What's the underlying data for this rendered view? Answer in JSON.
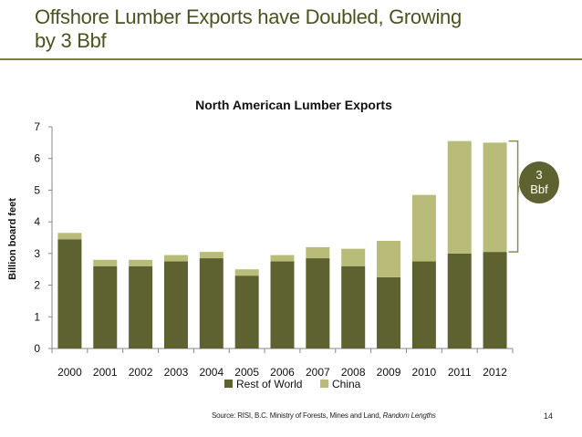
{
  "slide": {
    "title_line1": "Offshore Lumber Exports have Doubled, Growing",
    "title_line2": "by 3 Bbf",
    "source_prefix": "Source:  RISI, B.C. Ministry of Forests, Mines and Land,",
    "source_italic": "Random Lengths",
    "page_number": "14",
    "callout_line1": "3",
    "callout_line2": "Bbf"
  },
  "colors": {
    "title": "#4b5320",
    "rest_of_world": "#5e6230",
    "china": "#b8bc78",
    "callout": "#5e6230",
    "bracket": "#8a8e50"
  },
  "chart_data": {
    "type": "bar",
    "stacked": true,
    "title": "North American Lumber Exports",
    "ylabel": "Billion board feet",
    "xlabel": "",
    "ylim": [
      0,
      7
    ],
    "yticks": [
      0,
      1,
      2,
      3,
      4,
      5,
      6,
      7
    ],
    "grid": false,
    "legend_position": "bottom",
    "categories": [
      "2000",
      "2001",
      "2002",
      "2003",
      "2004",
      "2005",
      "2006",
      "2007",
      "2008",
      "2009",
      "2010",
      "2011",
      "2012"
    ],
    "series": [
      {
        "name": "Rest of World",
        "color": "#5e6230",
        "values": [
          3.45,
          2.6,
          2.6,
          2.75,
          2.85,
          2.3,
          2.75,
          2.85,
          2.6,
          2.25,
          2.75,
          3.0,
          3.05
        ]
      },
      {
        "name": "China",
        "color": "#b8bc78",
        "values": [
          0.2,
          0.2,
          0.2,
          0.2,
          0.2,
          0.2,
          0.2,
          0.35,
          0.55,
          1.15,
          2.1,
          3.55,
          3.45
        ]
      }
    ]
  }
}
